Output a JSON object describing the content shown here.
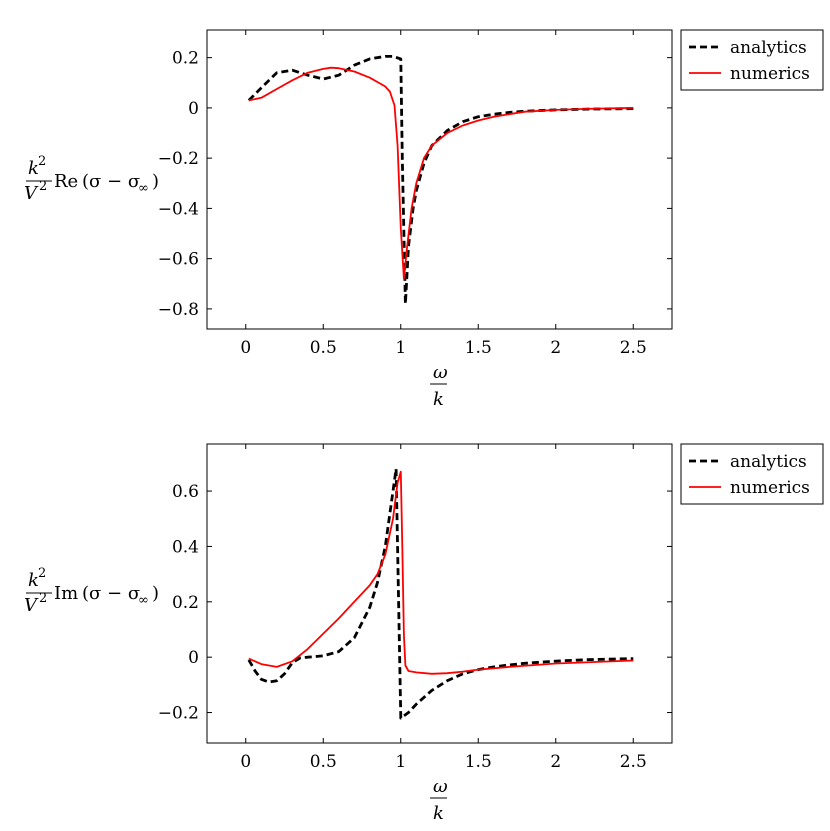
{
  "chart_data": [
    {
      "type": "line",
      "ylabel": {
        "numerator": "k",
        "numerator_exp": "2",
        "denominator": "V",
        "denominator_exp": "2",
        "func": "Re",
        "argument": "(σ − σ",
        "argument_sub": "∞",
        "argument_close": ")"
      },
      "xlabel": {
        "numerator": "ω",
        "denominator": "k"
      },
      "xlim": [
        -0.25,
        2.75
      ],
      "ylim": [
        -0.88,
        0.31
      ],
      "xticks": [
        0,
        0.5,
        1,
        1.5,
        2,
        2.5
      ],
      "xtick_labels": [
        "0",
        "0.5",
        "1",
        "1.5",
        "2",
        "2.5"
      ],
      "yticks": [
        0.2,
        0,
        -0.2,
        -0.4,
        -0.6,
        -0.8
      ],
      "ytick_labels": [
        "0.2",
        "0",
        "−0.2",
        "−0.4",
        "−0.6",
        "−0.8"
      ],
      "legend": {
        "position": "outside-top-right",
        "entries": [
          "analytics",
          "numerics"
        ]
      },
      "grid": false,
      "series": [
        {
          "name": "analytics",
          "color": "#000000",
          "style": "dashed",
          "x": [
            0.02,
            0.1,
            0.2,
            0.3,
            0.4,
            0.5,
            0.6,
            0.7,
            0.8,
            0.9,
            0.95,
            1.0,
            1.01,
            1.02,
            1.03,
            1.05,
            1.08,
            1.1,
            1.15,
            1.2,
            1.3,
            1.4,
            1.5,
            1.6,
            1.7,
            1.8,
            2.0,
            2.2,
            2.5
          ],
          "y": [
            0.03,
            0.08,
            0.14,
            0.15,
            0.13,
            0.115,
            0.13,
            0.17,
            0.195,
            0.205,
            0.205,
            0.195,
            -0.2,
            -0.5,
            -0.78,
            -0.55,
            -0.4,
            -0.33,
            -0.22,
            -0.15,
            -0.09,
            -0.055,
            -0.035,
            -0.025,
            -0.018,
            -0.013,
            -0.008,
            -0.005,
            -0.003
          ]
        },
        {
          "name": "numerics",
          "color": "#ff0000",
          "style": "solid",
          "x": [
            0.02,
            0.1,
            0.2,
            0.3,
            0.4,
            0.5,
            0.55,
            0.6,
            0.7,
            0.8,
            0.9,
            0.93,
            0.96,
            0.98,
            1.0,
            1.02,
            1.04,
            1.07,
            1.1,
            1.15,
            1.2,
            1.3,
            1.4,
            1.5,
            1.6,
            1.7,
            1.8,
            2.0,
            2.2,
            2.5
          ],
          "y": [
            0.03,
            0.04,
            0.075,
            0.11,
            0.14,
            0.155,
            0.16,
            0.158,
            0.145,
            0.12,
            0.085,
            0.065,
            0.01,
            -0.15,
            -0.48,
            -0.68,
            -0.56,
            -0.4,
            -0.3,
            -0.2,
            -0.15,
            -0.1,
            -0.07,
            -0.05,
            -0.035,
            -0.025,
            -0.015,
            -0.008,
            -0.004,
            0.0
          ]
        }
      ]
    },
    {
      "type": "line",
      "ylabel": {
        "numerator": "k",
        "numerator_exp": "2",
        "denominator": "V",
        "denominator_exp": "2",
        "func": "Im",
        "argument": "(σ − σ",
        "argument_sub": "∞",
        "argument_close": ")"
      },
      "xlabel": {
        "numerator": "ω",
        "denominator": "k"
      },
      "xlim": [
        -0.25,
        2.75
      ],
      "ylim": [
        -0.31,
        0.77
      ],
      "xticks": [
        0,
        0.5,
        1,
        1.5,
        2,
        2.5
      ],
      "xtick_labels": [
        "0",
        "0.5",
        "1",
        "1.5",
        "2",
        "2.5"
      ],
      "yticks": [
        0.6,
        0.4,
        0.2,
        0,
        -0.2
      ],
      "ytick_labels": [
        "0.6",
        "0.4",
        "0.2",
        "0",
        "−0.2"
      ],
      "legend": {
        "position": "outside-top-right",
        "entries": [
          "analytics",
          "numerics"
        ]
      },
      "grid": false,
      "series": [
        {
          "name": "analytics",
          "color": "#000000",
          "style": "dashed",
          "x": [
            0.02,
            0.06,
            0.1,
            0.15,
            0.2,
            0.25,
            0.3,
            0.35,
            0.4,
            0.5,
            0.6,
            0.7,
            0.8,
            0.85,
            0.9,
            0.95,
            0.97,
            1.0,
            1.05,
            1.1,
            1.2,
            1.3,
            1.4,
            1.5,
            1.6,
            1.7,
            1.8,
            2.0,
            2.2,
            2.5
          ],
          "y": [
            -0.01,
            -0.05,
            -0.08,
            -0.09,
            -0.085,
            -0.06,
            -0.02,
            -0.003,
            0.0,
            0.005,
            0.02,
            0.07,
            0.18,
            0.27,
            0.4,
            0.6,
            0.68,
            -0.22,
            -0.2,
            -0.17,
            -0.12,
            -0.085,
            -0.06,
            -0.045,
            -0.035,
            -0.028,
            -0.022,
            -0.014,
            -0.009,
            -0.005
          ]
        },
        {
          "name": "numerics",
          "color": "#ff0000",
          "style": "solid",
          "x": [
            0.02,
            0.1,
            0.2,
            0.3,
            0.4,
            0.5,
            0.6,
            0.7,
            0.8,
            0.85,
            0.9,
            0.95,
            0.98,
            1.0,
            1.01,
            1.02,
            1.03,
            1.05,
            1.1,
            1.2,
            1.3,
            1.4,
            1.5,
            1.7,
            2.0,
            2.5
          ],
          "y": [
            -0.005,
            -0.025,
            -0.035,
            -0.015,
            0.03,
            0.085,
            0.14,
            0.2,
            0.26,
            0.3,
            0.37,
            0.5,
            0.63,
            0.67,
            0.4,
            0.08,
            -0.03,
            -0.05,
            -0.055,
            -0.06,
            -0.058,
            -0.052,
            -0.045,
            -0.035,
            -0.023,
            -0.012
          ]
        }
      ]
    }
  ]
}
